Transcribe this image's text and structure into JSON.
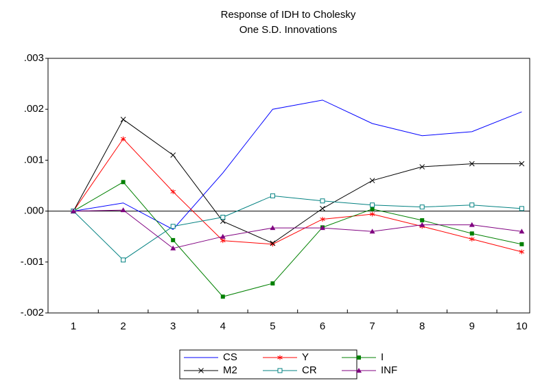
{
  "chart_data": {
    "type": "line",
    "title": "Response of IDH to Cholesky",
    "subtitle": "One S.D. Innovations",
    "categories": [
      "1",
      "2",
      "3",
      "4",
      "5",
      "6",
      "7",
      "8",
      "9",
      "10"
    ],
    "ylim": [
      -0.002,
      0.003
    ],
    "yticks": [
      {
        "value": -0.002,
        "label": "-.002"
      },
      {
        "value": -0.001,
        "label": "-.001"
      },
      {
        "value": 0,
        "label": ".000"
      },
      {
        "value": 0.001,
        "label": ".001"
      },
      {
        "value": 0.002,
        "label": ".002"
      },
      {
        "value": 0.003,
        "label": ".003"
      }
    ],
    "zero_line": true,
    "legend": "bottom",
    "series": [
      {
        "name": "CS",
        "color": "#0000ff",
        "marker": "none",
        "values": [
          0,
          0.00016,
          -0.00036,
          0.00075,
          0.002,
          0.00218,
          0.00172,
          0.00148,
          0.00156,
          0.00195
        ]
      },
      {
        "name": "Y",
        "color": "#ff0000",
        "marker": "star",
        "values": [
          0,
          0.00142,
          0.00038,
          -0.00058,
          -0.00065,
          -0.00016,
          -6e-05,
          -0.0003,
          -0.00055,
          -0.0008
        ]
      },
      {
        "name": "I",
        "color": "#008000",
        "marker": "square",
        "values": [
          0,
          0.00057,
          -0.00057,
          -0.00168,
          -0.00142,
          -0.00032,
          4e-05,
          -0.00018,
          -0.00044,
          -0.00065
        ]
      },
      {
        "name": "M2",
        "color": "#000000",
        "marker": "x",
        "values": [
          0,
          0.0018,
          0.0011,
          -0.0002,
          -0.00063,
          5e-05,
          0.0006,
          0.00087,
          0.00093,
          0.00093
        ]
      },
      {
        "name": "CR",
        "color": "#008080",
        "marker": "open-square",
        "values": [
          0,
          -0.00096,
          -0.0003,
          -0.00012,
          0.0003,
          0.0002,
          0.00012,
          8e-05,
          0.00012,
          5e-05
        ]
      },
      {
        "name": "INF",
        "color": "#800080",
        "marker": "triangle",
        "values": [
          0,
          2e-05,
          -0.00073,
          -0.0005,
          -0.00033,
          -0.00033,
          -0.0004,
          -0.00027,
          -0.00027,
          -0.0004
        ]
      }
    ]
  }
}
